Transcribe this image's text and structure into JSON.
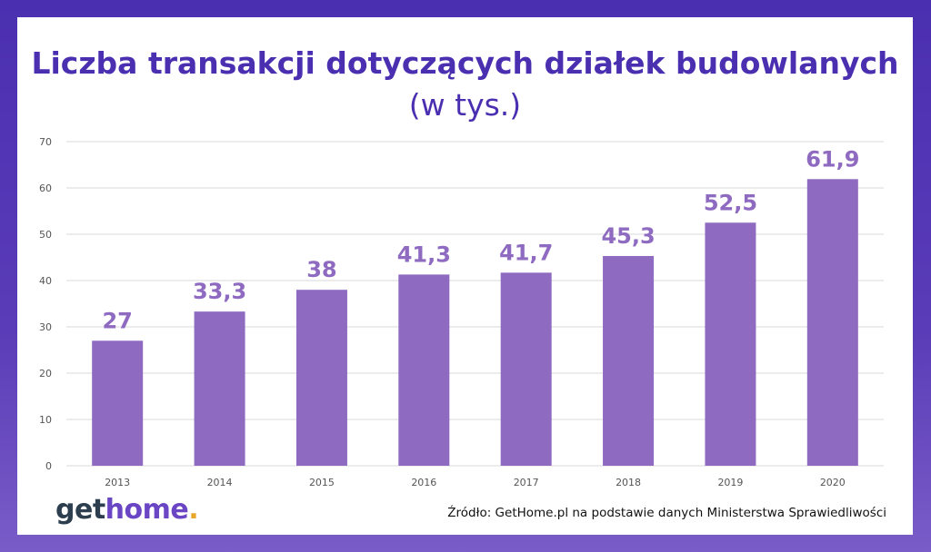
{
  "title": {
    "bold": "Liczba transakcji dotyczących działek budowlanych",
    "light": "(w tys.)"
  },
  "logo": {
    "part1": "get",
    "part2": "home",
    "part3": "."
  },
  "source": "Źródło: GetHome.pl na podstawie danych Ministerstwa Sprawiedliwości",
  "colors": {
    "bar": "#8e6ac1",
    "value_label": "#8e6ac1",
    "title": "#4a2fb0",
    "frame": "#4a2fb0",
    "grid": "#d9d9d9"
  },
  "chart_data": {
    "type": "bar",
    "title": "Liczba transakcji dotyczących działek budowlanych (w tys.)",
    "categories": [
      "2013",
      "2014",
      "2015",
      "2016",
      "2017",
      "2018",
      "2019",
      "2020"
    ],
    "values": [
      27,
      33.3,
      38,
      41.3,
      41.7,
      45.3,
      52.5,
      61.9
    ],
    "value_labels": [
      "27",
      "33,3",
      "38",
      "41,3",
      "41,7",
      "45,3",
      "52,5",
      "61,9"
    ],
    "yticks": [
      "0",
      "10",
      "20",
      "30",
      "40",
      "50",
      "60",
      "70"
    ],
    "ylim": [
      0,
      70
    ],
    "xlabel": "",
    "ylabel": "",
    "grid": true,
    "legend": "none"
  }
}
